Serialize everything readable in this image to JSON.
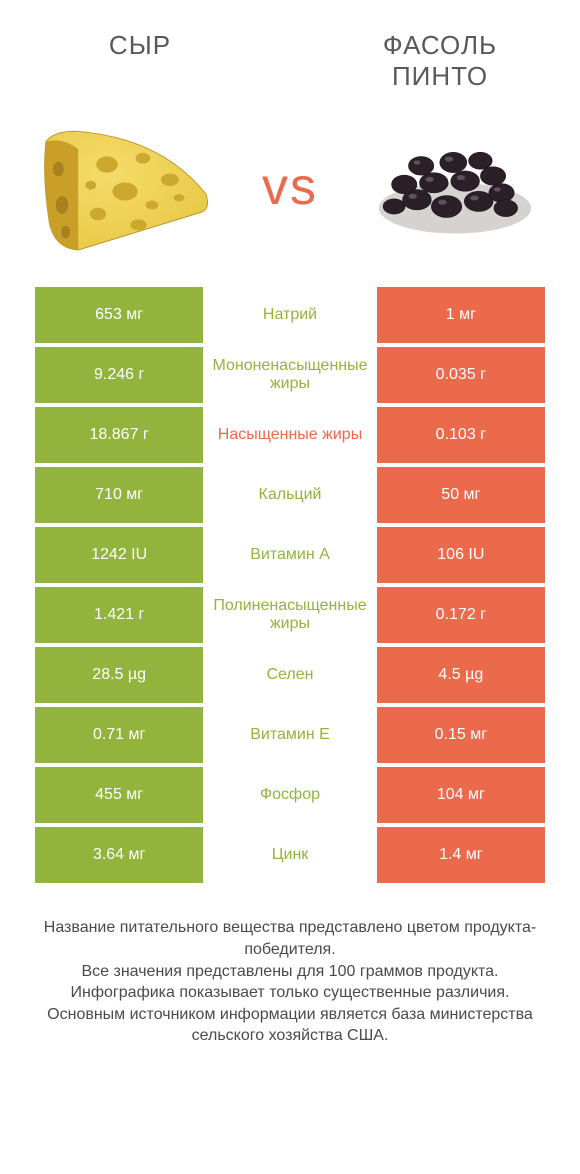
{
  "colors": {
    "left_bg": "#92b43c",
    "right_bg": "#eb6a4c",
    "left_text": "#92b43c",
    "right_text": "#eb6a4c",
    "cheese_body": "#e9c743",
    "cheese_rim": "#c99f27",
    "cheese_hole": "#cda82e",
    "bean_body": "#2b1f28",
    "bean_hilite": "#7e6d7a",
    "title_color": "#595959"
  },
  "header": {
    "left": "Сыр",
    "right": "Фасоль пинто"
  },
  "vs_label": "vs",
  "rows": [
    {
      "left": "653 мг",
      "label": "Натрий",
      "right": "1 мг",
      "winner": "left"
    },
    {
      "left": "9.246 г",
      "label": "Мононенасыщенные жиры",
      "right": "0.035 г",
      "winner": "left"
    },
    {
      "left": "18.867 г",
      "label": "Насыщенные жиры",
      "right": "0.103 г",
      "winner": "right"
    },
    {
      "left": "710 мг",
      "label": "Кальций",
      "right": "50 мг",
      "winner": "left"
    },
    {
      "left": "1242 IU",
      "label": "Витамин A",
      "right": "106 IU",
      "winner": "left"
    },
    {
      "left": "1.421 г",
      "label": "Полиненасыщенные жиры",
      "right": "0.172 г",
      "winner": "left"
    },
    {
      "left": "28.5 µg",
      "label": "Селен",
      "right": "4.5 µg",
      "winner": "left"
    },
    {
      "left": "0.71 мг",
      "label": "Витамин E",
      "right": "0.15 мг",
      "winner": "left"
    },
    {
      "left": "455 мг",
      "label": "Фосфор",
      "right": "104 мг",
      "winner": "left"
    },
    {
      "left": "3.64 мг",
      "label": "Цинк",
      "right": "1.4 мг",
      "winner": "left"
    }
  ],
  "footer_lines": [
    "Название питательного вещества представлено цветом продукта-победителя.",
    "Все значения представлены для 100 граммов продукта.",
    "Инфографика показывает только существенные различия.",
    "Основным источником информации является база министерства сельского хозяйства США."
  ]
}
